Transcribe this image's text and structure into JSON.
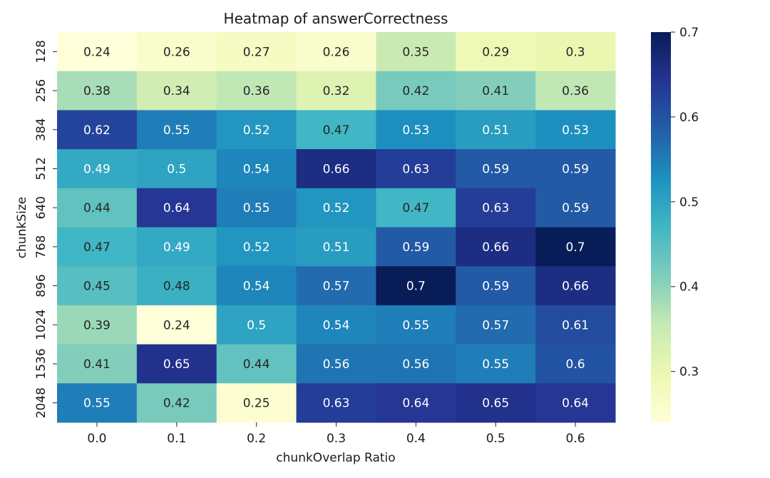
{
  "chart_data": {
    "type": "heatmap",
    "title": "Heatmap of answerCorrectness",
    "xlabel": "chunkOverlap Ratio",
    "ylabel": "chunkSize",
    "x_categories": [
      "0.0",
      "0.1",
      "0.2",
      "0.3",
      "0.4",
      "0.5",
      "0.6"
    ],
    "y_categories": [
      "128",
      "256",
      "384",
      "512",
      "640",
      "768",
      "896",
      "1024",
      "1536",
      "2048"
    ],
    "values": [
      [
        0.24,
        0.26,
        0.27,
        0.26,
        0.35,
        0.29,
        0.3
      ],
      [
        0.38,
        0.34,
        0.36,
        0.32,
        0.42,
        0.41,
        0.36
      ],
      [
        0.62,
        0.55,
        0.52,
        0.47,
        0.53,
        0.51,
        0.53
      ],
      [
        0.49,
        0.5,
        0.54,
        0.66,
        0.63,
        0.59,
        0.59
      ],
      [
        0.44,
        0.64,
        0.55,
        0.52,
        0.47,
        0.63,
        0.59
      ],
      [
        0.47,
        0.49,
        0.52,
        0.51,
        0.59,
        0.66,
        0.7
      ],
      [
        0.45,
        0.48,
        0.54,
        0.57,
        0.7,
        0.59,
        0.66
      ],
      [
        0.39,
        0.24,
        0.5,
        0.54,
        0.55,
        0.57,
        0.61
      ],
      [
        0.41,
        0.65,
        0.44,
        0.56,
        0.56,
        0.55,
        0.6
      ],
      [
        0.55,
        0.42,
        0.25,
        0.63,
        0.64,
        0.65,
        0.64
      ]
    ],
    "vmin": 0.24,
    "vmax": 0.7,
    "colormap": "YlGnBu",
    "colorbar_ticks": [
      0.3,
      0.4,
      0.5,
      0.6,
      0.7
    ],
    "colorbar_tick_labels": [
      "0.3",
      "0.4",
      "0.5",
      "0.6",
      "0.7"
    ],
    "colormap_stops": [
      "#ffffd9",
      "#edf8b1",
      "#c7e9b4",
      "#7fcdbb",
      "#41b6c4",
      "#1d91c0",
      "#225ea8",
      "#253494",
      "#081d58"
    ]
  }
}
